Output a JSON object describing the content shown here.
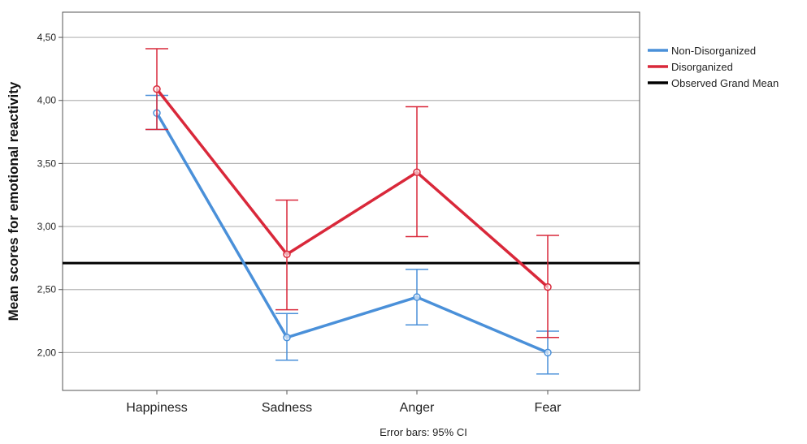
{
  "chart_data": {
    "type": "line",
    "ylabel": "Mean scores for emotional reactivity",
    "footnote": "Error bars: 95% CI",
    "categories": [
      "Happiness",
      "Sadness",
      "Anger",
      "Fear"
    ],
    "ylim": [
      1.7,
      4.7
    ],
    "yticks": [
      2.0,
      2.5,
      3.0,
      3.5,
      4.0,
      4.5
    ],
    "ytick_labels": [
      "2,00",
      "2,50",
      "3,00",
      "3,50",
      "4,00",
      "4,50"
    ],
    "grid": true,
    "legend_position": "top-right",
    "reference_line": {
      "name": "Observed Grand Mean",
      "value": 2.71,
      "color": "#000000"
    },
    "series": [
      {
        "name": "Non-Disorganized",
        "color": "#4a90d9",
        "values": [
          3.9,
          2.12,
          2.44,
          2.0
        ],
        "ci_low": [
          3.77,
          1.94,
          2.22,
          1.83
        ],
        "ci_high": [
          4.04,
          2.31,
          2.66,
          2.17
        ]
      },
      {
        "name": "Disorganized",
        "color": "#d9283a",
        "values": [
          4.09,
          2.78,
          3.43,
          2.52
        ],
        "ci_low": [
          3.77,
          2.34,
          2.92,
          2.12
        ],
        "ci_high": [
          4.41,
          3.21,
          3.95,
          2.93
        ]
      }
    ]
  }
}
